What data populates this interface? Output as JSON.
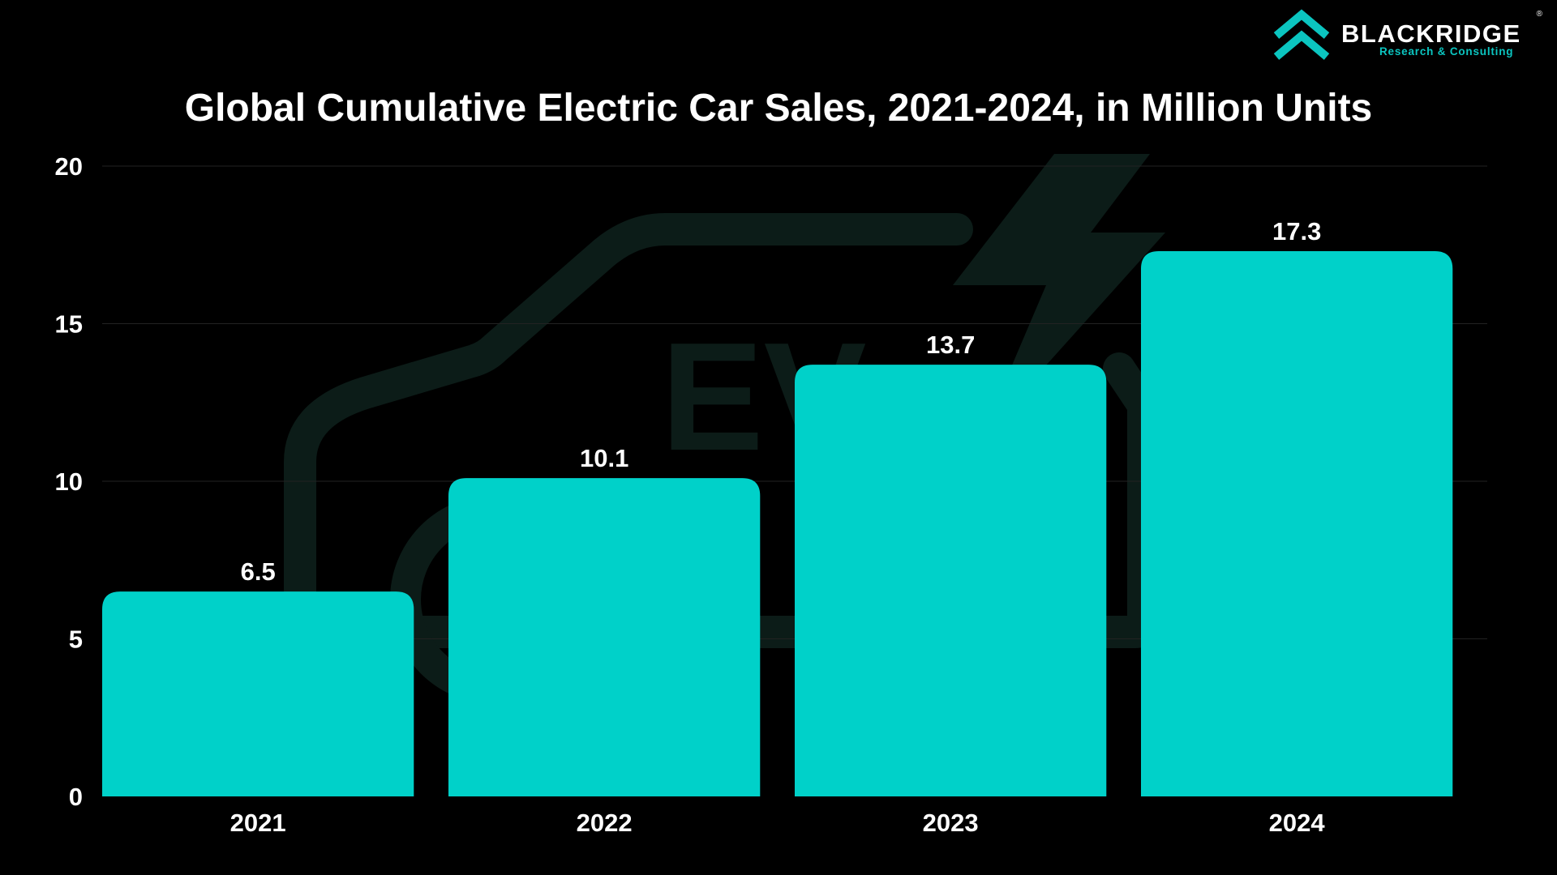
{
  "brand": {
    "name": "BLACKRIDGE",
    "registered": "®",
    "tagline": "Research & Consulting",
    "accent_color": "#0bc5c0"
  },
  "background": {
    "watermark_text": "EV",
    "watermark_icon": "electric-car-icon"
  },
  "chart_data": {
    "type": "bar",
    "title": "Global Cumulative Electric Car Sales, 2021-2024, in Million Units",
    "categories": [
      "2021",
      "2022",
      "2023",
      "2024"
    ],
    "values": [
      6.5,
      10.1,
      13.7,
      17.3
    ],
    "data_labels": [
      "6.5",
      "10.1",
      "13.7",
      "17.3"
    ],
    "y_ticks": [
      0,
      5,
      10,
      15,
      20
    ],
    "ylim": [
      0,
      20
    ],
    "xlabel": "",
    "ylabel": "",
    "grid": true,
    "legend": "none",
    "bar_color": "#00d4cc"
  }
}
